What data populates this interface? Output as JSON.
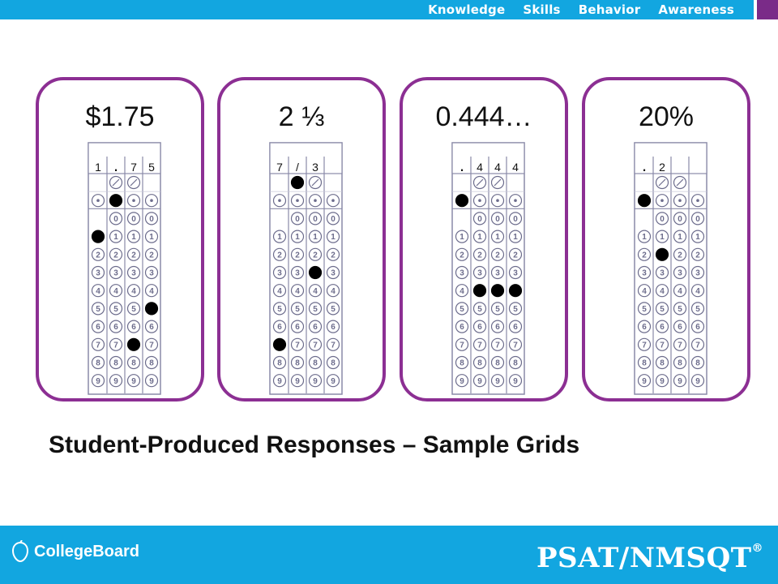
{
  "nav": {
    "items": [
      "Knowledge",
      "Skills",
      "Behavior",
      "Awareness"
    ]
  },
  "panels": [
    {
      "title": "$1.75",
      "written": [
        "1",
        ".",
        "7",
        "5"
      ],
      "filled": [
        "1",
        ".",
        "7",
        "5"
      ]
    },
    {
      "title": "2 ⅓",
      "written": [
        "7",
        "/",
        "3",
        ""
      ],
      "filled": [
        "7",
        "/",
        "3",
        ""
      ]
    },
    {
      "title": "0.444…",
      "written": [
        ".",
        "4",
        "4",
        "4"
      ],
      "filled": [
        ".",
        "4",
        "4",
        "4"
      ]
    },
    {
      "title": "20%",
      "written": [
        ".",
        "2",
        "",
        ""
      ],
      "filled": [
        ".",
        "2",
        "",
        ""
      ]
    }
  ],
  "caption": "Student-Produced Responses – Sample Grids",
  "footer": {
    "left_logo": "CollegeBoard",
    "right_logo": "PSAT/NMSQT",
    "right_mark": "®"
  },
  "colors": {
    "top_bar": "#12a6e0",
    "panel_border": "#8c2f93",
    "accent_purple": "#7a2b88"
  },
  "icons": [
    "acorn-icon"
  ]
}
